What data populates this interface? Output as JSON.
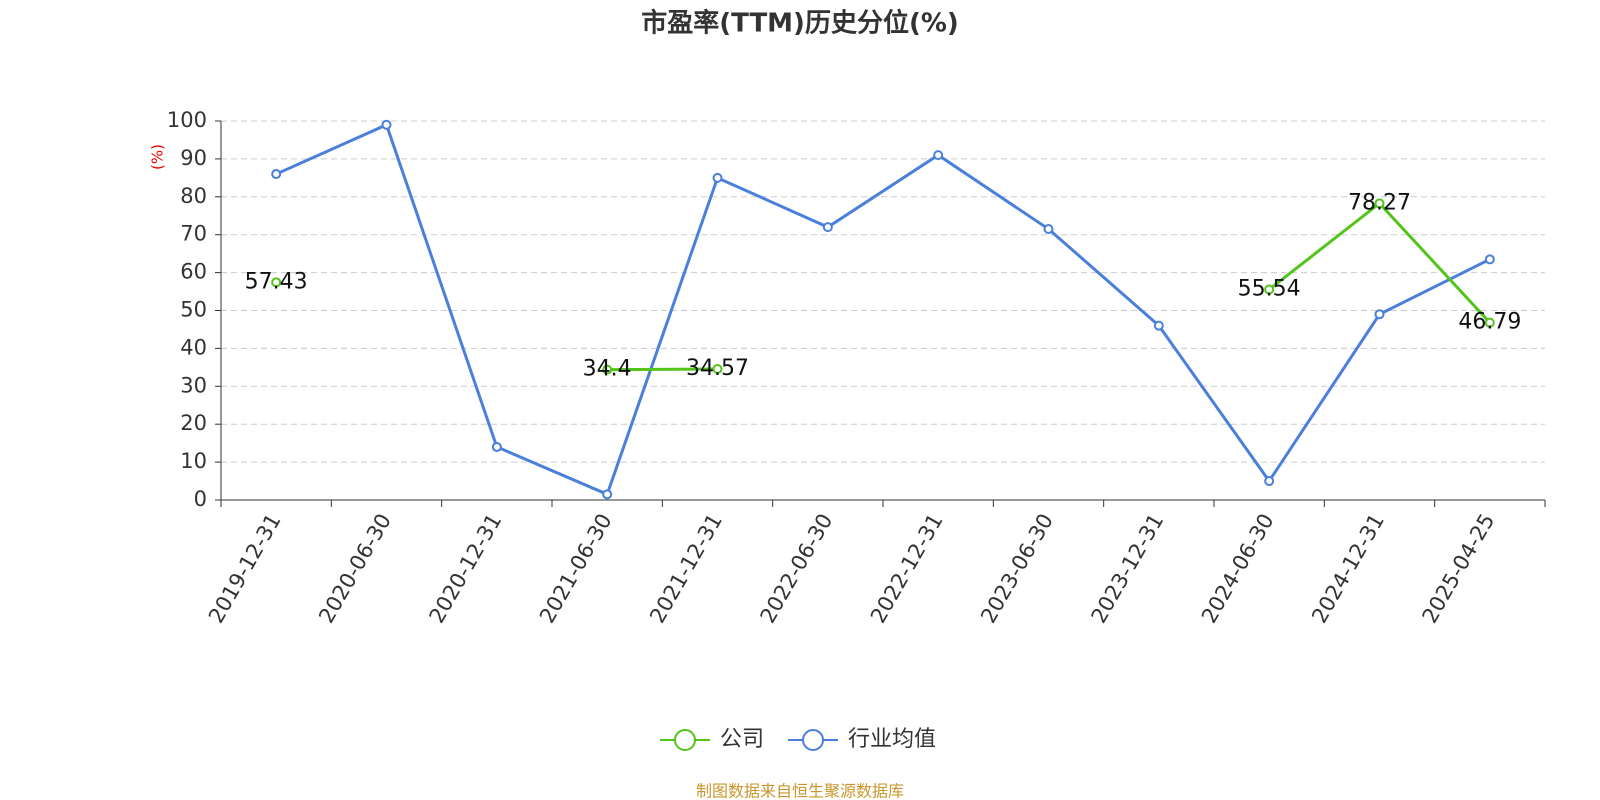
{
  "chart_data": {
    "type": "line",
    "title": "市盈率(TTM)历史分位(%)",
    "y_label": "(%)",
    "footer": "制图数据来自恒生聚源数据库",
    "categories": [
      "2019-12-31",
      "2020-06-30",
      "2020-12-31",
      "2021-06-30",
      "2021-12-31",
      "2022-06-30",
      "2022-12-31",
      "2023-06-30",
      "2023-12-31",
      "2024-06-30",
      "2024-12-31",
      "2025-04-25"
    ],
    "series": [
      {
        "name": "公司",
        "color": "#52c41a",
        "values": [
          57.43,
          null,
          null,
          34.4,
          34.57,
          null,
          null,
          null,
          null,
          55.54,
          78.27,
          46.79
        ],
        "labels": true
      },
      {
        "name": "行业均值",
        "color": "#4a7fdc",
        "values": [
          86,
          99,
          14,
          1.5,
          85,
          72,
          91,
          71.5,
          46,
          5,
          49,
          63.5
        ],
        "labels": false
      }
    ],
    "ylim": [
      0,
      100
    ],
    "yticks": [
      0,
      10,
      20,
      30,
      40,
      50,
      60,
      70,
      80,
      90,
      100
    ],
    "grid": true,
    "legend": "bottom"
  }
}
